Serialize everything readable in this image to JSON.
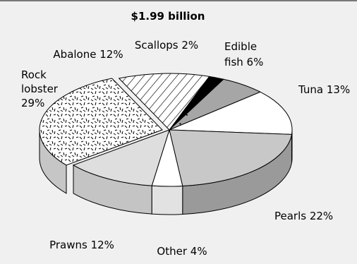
{
  "chart_data": {
    "type": "pie",
    "title": "$1.99 billion",
    "style": "3d-exploded-pie",
    "slices": [
      {
        "key": "scallops",
        "label": "Scallops 2%",
        "value": 2,
        "fill": "#000000"
      },
      {
        "key": "edible-fish",
        "label": "Edible fish 6%",
        "value": 6,
        "fill": "#a6a6a6"
      },
      {
        "key": "tuna",
        "label": "Tuna 13%",
        "value": 13,
        "fill": "#ffffff"
      },
      {
        "key": "pearls",
        "label": "Pearls 22%",
        "value": 22,
        "fill": "#c8c8c8"
      },
      {
        "key": "other",
        "label": "Other 4%",
        "value": 4,
        "fill": "#ffffff"
      },
      {
        "key": "prawns",
        "label": "Prawns 12%",
        "value": 12,
        "fill": "#dedede"
      },
      {
        "key": "rock-lobster",
        "label": "Rock lobster 29%",
        "value": 29,
        "fill": "pattern-dashes"
      },
      {
        "key": "abalone",
        "label": "Abalone 12%",
        "value": 12,
        "fill": "pattern-hatch"
      }
    ],
    "colors": {
      "background": "#f0f0f0",
      "stroke": "#000000",
      "side_dark": "#9a9a9a",
      "side_light": "#c4c4c4"
    }
  }
}
